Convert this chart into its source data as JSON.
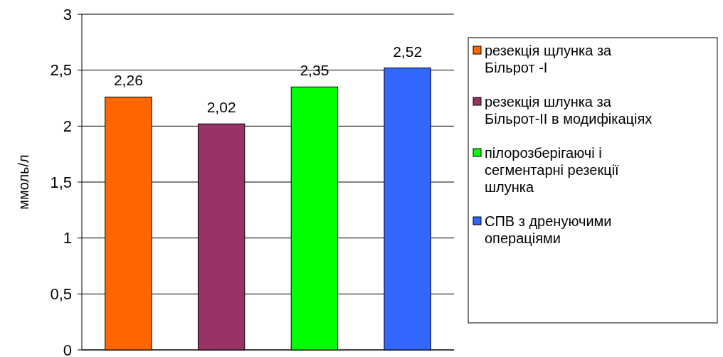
{
  "chart_data": {
    "type": "bar",
    "ylabel": "ммоль/л",
    "categories": [
      null
    ],
    "series": [
      {
        "name": "резекція щлунка за Більрот -І",
        "color": "#ff6600",
        "values": [
          2.26
        ],
        "value_labels": [
          "2,26"
        ]
      },
      {
        "name": "резекція шлунка за Більрот-ІІ в модифікаціях",
        "color": "#993366",
        "values": [
          2.02
        ],
        "value_labels": [
          "2,02"
        ]
      },
      {
        "name": "пілорозберігаючі і сегментарні резекції шлунка",
        "color": "#00ff00",
        "values": [
          2.35
        ],
        "value_labels": [
          "2,35"
        ]
      },
      {
        "name": "СПВ з дренуючими операціями",
        "color": "#3366ff",
        "values": [
          2.52
        ],
        "value_labels": [
          "2,52"
        ]
      }
    ],
    "ylim": [
      0,
      3
    ],
    "yticks": [
      {
        "value": 0,
        "label": "0"
      },
      {
        "value": 0.5,
        "label": "0,5"
      },
      {
        "value": 1,
        "label": "1"
      },
      {
        "value": 1.5,
        "label": "1,5"
      },
      {
        "value": 2,
        "label": "2"
      },
      {
        "value": 2.5,
        "label": "2,5"
      },
      {
        "value": 3,
        "label": "3"
      }
    ],
    "grid": "y",
    "legend": "right"
  }
}
